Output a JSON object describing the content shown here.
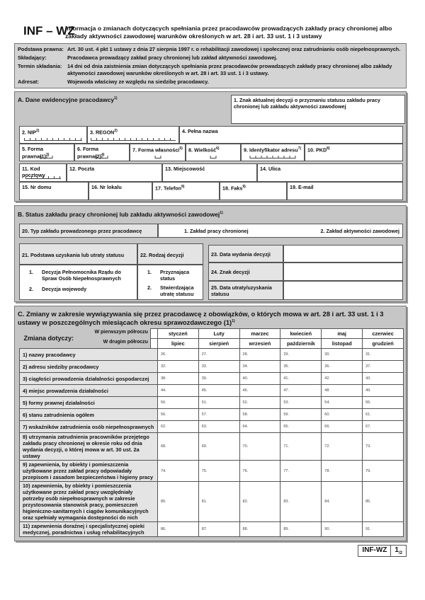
{
  "header": {
    "code": "INF – WZ",
    "title": "Informacja o zmianach dotyczących spełniania przez pracodawców prowadzących zakłady pracy chronionej albo zakłady aktywności zawodowej warunków określonych w art. 28 i art. 33 ust. 1 i 3 ustawy"
  },
  "info": [
    {
      "k": "Podstawa prawna:",
      "v": "Art. 30 ust. 4 pkt 1 ustawy z dnia 27 sierpnia 1997 r. o rehabilitacji zawodowej i społecznej oraz zatrudnianiu osób niepełnosprawnych."
    },
    {
      "k": "Składający:",
      "v": "Pracodawca prowadzący zakład pracy chronionej lub zakład aktywności zawodowej."
    },
    {
      "k": "Termin składania:",
      "v": "14 dni od dnia zaistnienia zmian dotyczących spełniania przez pracodawców prowadzących zakłady pracy chronionej albo zakłady aktywności zawodowej warunków określonych w art. 28 i art. 33 ust. 1 i 3 ustawy."
    },
    {
      "k": "Adresat:",
      "v": "Wojewoda właściwy ze względu na siedzibę pracodawcy."
    }
  ],
  "a": {
    "title": "A.  Dane ewidencyjne pracodawcy",
    "sup": "1)",
    "f1": "1. Znak aktualnej decyzji o przyznaniu statusu zakładu pracy chronionej lub zakładu aktywności zawodowej",
    "f2": "2. NIP",
    "f3": "3. REGON",
    "f4": "4. Pełna nazwa",
    "f5": "5. Forma prawna(1)",
    "f6": "6. Forma prawna(2)",
    "f7": "7. Forma własności",
    "f8": "8. Wielkość",
    "f9": "9. Identyfikator adresu",
    "f10": "10. PKD",
    "f11": "11. Kod pocztowy",
    "f12": "12. Poczta",
    "f13": "13. Miejscowość",
    "f14": "14. Ulica",
    "f15": "15. Nr domu",
    "f16": "16. Nr lokalu",
    "f17": "17. Telefon",
    "f18": "18. Faks",
    "f19": "19. E-mail"
  },
  "b": {
    "title": "B. Status zakładu pracy chronionej lub zakładu aktywności zawodowej",
    "sup": "1)",
    "f20": "20. Typ zakładu prowadzonego przez pracodawcę",
    "opt1": "1. Zakład pracy chronionej",
    "opt2": "2. Zakład aktywności zawodowej",
    "f21": "21. Podstawa uzyskania lub utraty statusu",
    "f21_1": "Decyzja Pełnomocnika Rządu do Spraw Osób Niepełnosprawnych",
    "f21_2": "Decyzja wojewody",
    "f22": "22. Rodzaj decyzji",
    "f22_1": "Przyznająca status",
    "f22_2": "Stwierdzająca utratę statusu",
    "n1": "1.",
    "n2": "2.",
    "f23": "23.  Data wydania decyzji",
    "f24": "24.  Znak decyzji",
    "f25": "25.  Data utraty/uzyskania statusu"
  },
  "c": {
    "title": "C.  Zmiany w zakresie wywiązywania się przez pracodawcę z obowiązków, o których mowa w art. 28 i art. 33 ust. 1 i 3 ustawy w poszczególnych miesiącach okresu sprawozdawczego (1)",
    "sup": "1)",
    "zmiana": "Zmiana dotyczy:",
    "h1": "W pierwszym półroczu",
    "h2": "W drugim półroczu",
    "months1": [
      "styczeń",
      "Luty",
      "marzec",
      "kwiecień",
      "maj",
      "czerwiec"
    ],
    "months2": [
      "lipiec",
      "sierpień",
      "wrzesień",
      "październik",
      "listopad",
      "grudzień"
    ],
    "rows": [
      {
        "label": "1)  nazwy pracodawcy",
        "nums": [
          "26.",
          "27.",
          "28.",
          "29.",
          "30.",
          "31."
        ]
      },
      {
        "label": "2)  adresu siedziby pracodawcy",
        "nums": [
          "32.",
          "33.",
          "34.",
          "35.",
          "36.",
          "37."
        ]
      },
      {
        "label": "3)  ciągłości prowadzenia działalności gospodarczej",
        "nums": [
          "38.",
          "39.",
          "40.",
          "41.",
          "42.",
          "43."
        ]
      },
      {
        "label": "4)  miejsc prowadzenia działalności",
        "nums": [
          "44.",
          "45.",
          "46.",
          "47.",
          "48.",
          "49."
        ]
      },
      {
        "label": "5)  formy prawnej działalności",
        "nums": [
          "50.",
          "51.",
          "52.",
          "53.",
          "54.",
          "55."
        ]
      },
      {
        "label": "6)  stanu zatrudnienia ogółem",
        "nums": [
          "56.",
          "57.",
          "58.",
          "59.",
          "60.",
          "61."
        ]
      },
      {
        "label": "7)  wskaźników zatrudnienia osób niepełnosprawnych",
        "nums": [
          "62.",
          "63.",
          "64.",
          "65.",
          "66.",
          "67."
        ]
      },
      {
        "label": "8)  utrzymania zatrudnienia pracowników przejętego zakładu pracy chronionej w okresie roku od dnia wydania decyzji, o której mowa w art. 30 ust. 2a ustawy",
        "nums": [
          "68.",
          "69.",
          "70.",
          "71.",
          "72.",
          "73."
        ]
      },
      {
        "label": "9)  zapewnienia, by obiekty i pomieszczenia użytkowane przez zakład pracy odpowiadały przepisom i zasadom bezpieczeństwa i higieny pracy",
        "nums": [
          "74.",
          "75.",
          "76.",
          "77.",
          "78.",
          "79."
        ]
      },
      {
        "label": "10) zapewnienia, by obiekty i pomieszczenia użytkowane przez zakład pracy uwzględniały potrzeby osób niepełnosprawnych w zakresie przystosowania stanowisk pracy, pomieszczeń higieniczno-sanitarnych i ciągów komunikacyjnych oraz spełniały wymagania dostępności do nich",
        "nums": [
          "80.",
          "81.",
          "82.",
          "83.",
          "84.",
          "85."
        ]
      },
      {
        "label": "11) zapewnienia doraźnej i specjalistycznej opieki medycznej, poradnictwa i usług rehabilitacyjnych",
        "nums": [
          "86.",
          "87.",
          "88.",
          "89.",
          "90.",
          "91."
        ]
      }
    ]
  },
  "footer": {
    "code": "INF-WZ",
    "page": "1",
    "of": "/2"
  }
}
